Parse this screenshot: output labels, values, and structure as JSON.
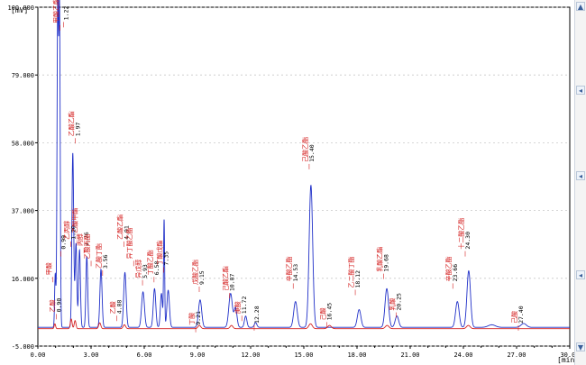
{
  "units": {
    "y": "[mV]",
    "x": "[min]"
  },
  "chart_data": {
    "type": "line",
    "title": "",
    "xlabel": "[min]",
    "ylabel": "[mV]",
    "xlim": [
      0,
      30
    ],
    "ylim": [
      -5,
      100
    ],
    "x_ticks": [
      "0.00",
      "3.00",
      "6.00",
      "9.00",
      "12.00",
      "15.00",
      "18.00",
      "21.00",
      "24.00",
      "27.00",
      "30.00"
    ],
    "y_ticks": [
      "-5.000",
      "16.000",
      "37.000",
      "58.000",
      "79.000",
      "100.000"
    ],
    "grid": "horizontal dashed",
    "series": [
      {
        "color": "#1f2fc8",
        "baseline": 0.8,
        "peaks": [
          {
            "rt": 0.98,
            "h": 16.5,
            "w": 0.035
          },
          {
            "rt": 1.12,
            "h": 99.0,
            "w": 0.04
          },
          {
            "rt": 1.22,
            "h": 98.0,
            "w": 0.04
          },
          {
            "rt": 1.97,
            "h": 54.0,
            "w": 0.05
          },
          {
            "rt": 2.15,
            "h": 26.0,
            "w": 0.05
          },
          {
            "rt": 2.35,
            "h": 24.0,
            "w": 0.05
          },
          {
            "rt": 2.76,
            "h": 22.0,
            "w": 0.05
          },
          {
            "rt": 3.56,
            "h": 18.0,
            "w": 0.06
          },
          {
            "rt": 4.91,
            "h": 17.0,
            "w": 0.07
          },
          {
            "rt": 5.93,
            "h": 11.0,
            "w": 0.08
          },
          {
            "rt": 6.58,
            "h": 12.0,
            "w": 0.07
          },
          {
            "rt": 6.97,
            "h": 10.5,
            "w": 0.06
          },
          {
            "rt": 7.12,
            "h": 33.0,
            "w": 0.03
          },
          {
            "rt": 7.35,
            "h": 11.5,
            "w": 0.07
          },
          {
            "rt": 9.15,
            "h": 8.5,
            "w": 0.09
          },
          {
            "rt": 10.87,
            "h": 10.5,
            "w": 0.1
          },
          {
            "rt": 11.15,
            "h": 6.0,
            "w": 0.08
          },
          {
            "rt": 11.72,
            "h": 3.5,
            "w": 0.07
          },
          {
            "rt": 12.28,
            "h": 1.5,
            "w": 0.07
          },
          {
            "rt": 14.53,
            "h": 8.0,
            "w": 0.1
          },
          {
            "rt": 15.4,
            "h": 44.0,
            "w": 0.1
          },
          {
            "rt": 18.12,
            "h": 5.5,
            "w": 0.1
          },
          {
            "rt": 19.68,
            "h": 12.0,
            "w": 0.1
          },
          {
            "rt": 20.25,
            "h": 3.5,
            "w": 0.1
          },
          {
            "rt": 23.66,
            "h": 8.0,
            "w": 0.1
          },
          {
            "rt": 24.3,
            "h": 17.5,
            "w": 0.1
          },
          {
            "rt": 25.6,
            "h": 0.8,
            "w": 0.2
          },
          {
            "rt": 27.4,
            "h": 1.2,
            "w": 0.15
          }
        ]
      },
      {
        "color": "#d42020",
        "baseline": 0.4,
        "peaks": [
          {
            "rt": 0.96,
            "h": 1.5,
            "w": 0.04
          },
          {
            "rt": 1.88,
            "h": 3.0,
            "w": 0.05
          },
          {
            "rt": 2.1,
            "h": 2.5,
            "w": 0.05
          },
          {
            "rt": 3.49,
            "h": 1.8,
            "w": 0.06
          },
          {
            "rt": 4.88,
            "h": 1.2,
            "w": 0.07
          },
          {
            "rt": 9.11,
            "h": 1.0,
            "w": 0.08
          },
          {
            "rt": 10.92,
            "h": 1.0,
            "w": 0.08
          },
          {
            "rt": 15.38,
            "h": 1.5,
            "w": 0.1
          },
          {
            "rt": 16.45,
            "h": 1.0,
            "w": 0.1
          },
          {
            "rt": 19.7,
            "h": 1.0,
            "w": 0.1
          },
          {
            "rt": 24.28,
            "h": 1.0,
            "w": 0.1
          }
        ]
      }
    ],
    "annotations": [
      {
        "x": 0.95,
        "y": 5.5,
        "name": "乙酸",
        "time": "0.90"
      },
      {
        "x": 0.75,
        "y": 17.0,
        "name": "甲酸",
        "time": ""
      },
      {
        "x": 1.15,
        "y": 95.0,
        "name": "甲酸乙酯",
        "time": ""
      },
      {
        "x": 1.35,
        "y": 96.0,
        "name": "",
        "time": "1.22"
      },
      {
        "x": 1.2,
        "y": 25.0,
        "name": "",
        "time": "0.99"
      },
      {
        "x": 1.75,
        "y": 28.0,
        "name": "乙丙醇",
        "time": "1.20"
      },
      {
        "x": 2.0,
        "y": 60.0,
        "name": "乙酸乙酯",
        "time": "1.97"
      },
      {
        "x": 2.2,
        "y": 30.0,
        "name": "乙酸甲酯",
        "time": ""
      },
      {
        "x": 2.5,
        "y": 26.0,
        "name": "丙醇",
        "time": "2.76"
      },
      {
        "x": 2.9,
        "y": 22.0,
        "name": "乙酸丙酯",
        "time": ""
      },
      {
        "x": 3.55,
        "y": 19.0,
        "name": "乙酸丁酯",
        "time": "3.56"
      },
      {
        "x": 4.75,
        "y": 28.0,
        "name": "乙酸乙酯",
        "time": "4.91"
      },
      {
        "x": 4.35,
        "y": 5.0,
        "name": "乙酸",
        "time": "4.88"
      },
      {
        "x": 5.3,
        "y": 22.0,
        "name": "异丁酸乙酯",
        "time": ""
      },
      {
        "x": 5.8,
        "y": 16.0,
        "name": "异戊醇",
        "time": "5.93"
      },
      {
        "x": 6.45,
        "y": 17.0,
        "name": "丁酸乙酯",
        "time": "6.58"
      },
      {
        "x": 7.0,
        "y": 20.0,
        "name": "丁酸戊酯",
        "time": "7.35"
      },
      {
        "x": 8.8,
        "y": 1.5,
        "name": "丁酸",
        "time": "9.21"
      },
      {
        "x": 9.0,
        "y": 14.0,
        "name": "戊酸乙酯",
        "time": "9.15"
      },
      {
        "x": 10.7,
        "y": 12.0,
        "name": "己酸乙酯",
        "time": "10.87"
      },
      {
        "x": 11.4,
        "y": 5.0,
        "name": "庚酸",
        "time": "11.72"
      },
      {
        "x": 12.1,
        "y": 2.0,
        "name": "",
        "time": "12.28"
      },
      {
        "x": 14.3,
        "y": 15.0,
        "name": "辛酸乙酯",
        "time": "14.53"
      },
      {
        "x": 15.2,
        "y": 52.0,
        "name": "己酸乙酯",
        "time": "15.40"
      },
      {
        "x": 16.2,
        "y": 3.0,
        "name": "己酸",
        "time": "16.45"
      },
      {
        "x": 17.8,
        "y": 13.0,
        "name": "乙二酸丁酯",
        "time": "18.12"
      },
      {
        "x": 19.4,
        "y": 18.0,
        "name": "乳酸乙酯",
        "time": "19.68"
      },
      {
        "x": 20.1,
        "y": 6.0,
        "name": "乳酸",
        "time": "20.25"
      },
      {
        "x": 23.3,
        "y": 15.0,
        "name": "辛酸乙酯",
        "time": "23.66"
      },
      {
        "x": 24.0,
        "y": 25.0,
        "name": "十二酸乙酯",
        "time": "24.30"
      },
      {
        "x": 27.0,
        "y": 2.0,
        "name": "己酸",
        "time": "27.40"
      }
    ]
  }
}
